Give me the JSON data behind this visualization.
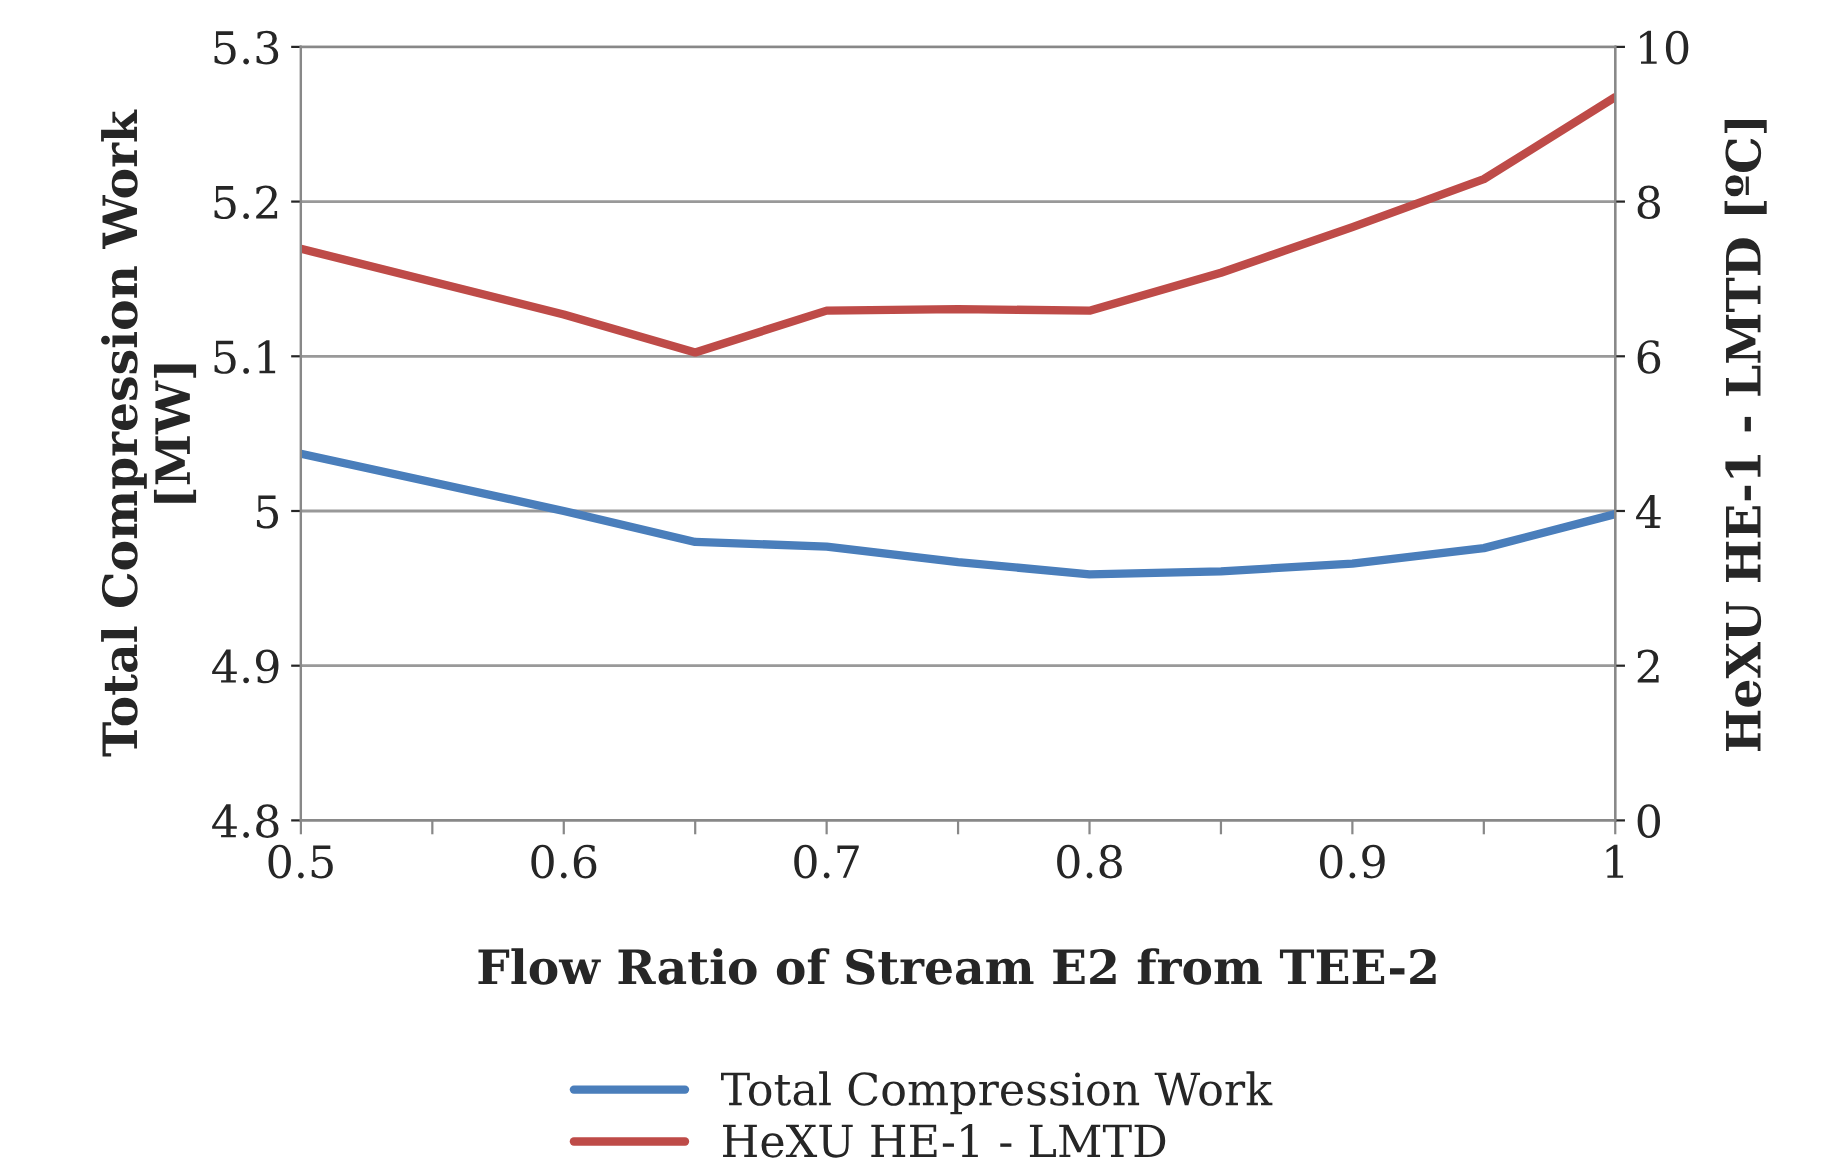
{
  "chart_data": {
    "type": "line",
    "xlabel": "Flow Ratio of Stream E2 from TEE-2",
    "ylabel": "Total Compression Work\n[MW]",
    "y2label": "HeXU HE-1 - LMTD [ºC]",
    "x": [
      0.5,
      0.6,
      0.65,
      0.7,
      0.75,
      0.8,
      0.85,
      0.9,
      0.95,
      1.0
    ],
    "series": [
      {
        "name": "Total Compression Work",
        "color": "#4a7ebb",
        "values": [
          5.037,
          5.0,
          4.98,
          4.977,
          4.967,
          4.959,
          4.961,
          4.966,
          4.976,
          4.998
        ]
      },
      {
        "name": "HeXU HE-1 - LMTD",
        "color": "#be4b48",
        "axis": "y2",
        "values": [
          7.39,
          6.54,
          6.05,
          6.59,
          6.61,
          6.59,
          7.08,
          7.67,
          8.29,
          9.35
        ]
      }
    ],
    "xlim": [
      0.5,
      1.0
    ],
    "xticks": [
      0.5,
      {
        "value": 0.55,
        "label": null
      },
      0.6,
      {
        "value": 0.65,
        "label": null
      },
      0.7,
      {
        "value": 0.75,
        "label": null
      },
      0.8,
      {
        "value": 0.85,
        "label": null
      },
      0.9,
      {
        "value": 0.95,
        "label": null
      },
      1
    ],
    "ylim": [
      4.8,
      5.3
    ],
    "yticks": [
      4.8,
      4.9,
      5,
      5.1,
      5.2,
      5.3
    ],
    "y2lim": [
      0,
      10
    ],
    "y2ticks": [
      0,
      2,
      4,
      6,
      8,
      10
    ],
    "grid": "y",
    "legend": "bottom",
    "marker": "none",
    "line_style": "solid"
  }
}
